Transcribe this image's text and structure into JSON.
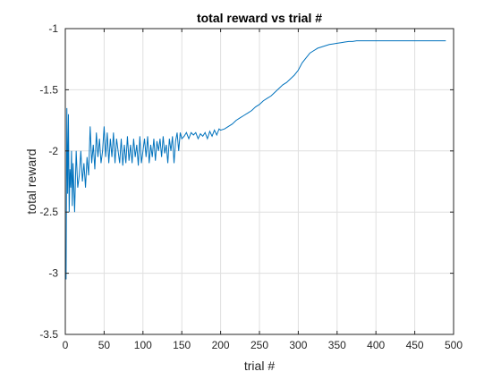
{
  "chart_data": {
    "type": "line",
    "title": "total reward vs trial #",
    "xlabel": "trial #",
    "ylabel": "total reward",
    "xlim": [
      0,
      500
    ],
    "ylim": [
      -3.5,
      -1
    ],
    "xticks": [
      0,
      50,
      100,
      150,
      200,
      250,
      300,
      350,
      400,
      450,
      500
    ],
    "yticks": [
      -3.5,
      -3,
      -2.5,
      -2,
      -1.5,
      -1
    ],
    "xtick_labels": [
      "0",
      "50",
      "100",
      "150",
      "200",
      "250",
      "300",
      "350",
      "400",
      "450",
      "500"
    ],
    "ytick_labels": [
      "-3.5",
      "-3",
      "-2.5",
      "-2",
      "-1.5",
      "-1"
    ],
    "grid": true,
    "series": [
      {
        "color": "#0072BD",
        "x": [
          1,
          2,
          3,
          4,
          5,
          6,
          7,
          8,
          9,
          10,
          12,
          14,
          16,
          18,
          20,
          22,
          24,
          26,
          28,
          30,
          32,
          34,
          36,
          38,
          40,
          42,
          44,
          46,
          48,
          50,
          52,
          54,
          56,
          58,
          60,
          62,
          64,
          66,
          68,
          70,
          72,
          74,
          76,
          78,
          80,
          82,
          84,
          86,
          88,
          90,
          92,
          94,
          96,
          98,
          100,
          102,
          104,
          106,
          108,
          110,
          112,
          114,
          116,
          118,
          120,
          122,
          124,
          126,
          128,
          130,
          132,
          134,
          136,
          138,
          140,
          142,
          144,
          146,
          148,
          150,
          153,
          156,
          159,
          162,
          165,
          168,
          171,
          174,
          177,
          180,
          183,
          186,
          189,
          192,
          195,
          198,
          200,
          205,
          210,
          215,
          220,
          225,
          230,
          235,
          240,
          245,
          250,
          255,
          260,
          265,
          270,
          275,
          280,
          285,
          290,
          295,
          300,
          305,
          310,
          315,
          320,
          325,
          330,
          335,
          340,
          345,
          350,
          355,
          360,
          365,
          370,
          375,
          380,
          385,
          390,
          400,
          410,
          420,
          430,
          440,
          450,
          460,
          470,
          480,
          490
        ],
        "y": [
          -3.05,
          -1.65,
          -2.35,
          -1.7,
          -2.5,
          -2.15,
          -2.3,
          -2.0,
          -2.45,
          -2.1,
          -2.5,
          -2.0,
          -2.3,
          -2.2,
          -2.0,
          -2.25,
          -2.1,
          -2.3,
          -2.05,
          -2.2,
          -1.8,
          -2.1,
          -1.95,
          -2.15,
          -1.85,
          -2.05,
          -1.9,
          -2.1,
          -2.0,
          -1.8,
          -2.05,
          -1.85,
          -2.1,
          -1.9,
          -2.05,
          -1.85,
          -2.1,
          -1.9,
          -2.0,
          -2.1,
          -1.9,
          -2.12,
          -1.95,
          -2.1,
          -1.88,
          -2.08,
          -1.95,
          -2.1,
          -1.9,
          -2.05,
          -1.95,
          -2.12,
          -1.88,
          -2.1,
          -2.0,
          -1.9,
          -2.05,
          -1.88,
          -2.1,
          -1.95,
          -2.05,
          -1.9,
          -2.08,
          -1.92,
          -2.0,
          -1.9,
          -2.05,
          -1.88,
          -2.02,
          -1.95,
          -2.1,
          -1.9,
          -2.0,
          -1.88,
          -2.1,
          -1.92,
          -1.85,
          -2.0,
          -1.85,
          -1.9,
          -1.88,
          -1.85,
          -1.9,
          -1.85,
          -1.87,
          -1.85,
          -1.9,
          -1.86,
          -1.88,
          -1.85,
          -1.9,
          -1.84,
          -1.88,
          -1.83,
          -1.87,
          -1.82,
          -1.83,
          -1.82,
          -1.8,
          -1.78,
          -1.75,
          -1.73,
          -1.71,
          -1.69,
          -1.67,
          -1.64,
          -1.62,
          -1.59,
          -1.57,
          -1.55,
          -1.52,
          -1.49,
          -1.46,
          -1.44,
          -1.41,
          -1.38,
          -1.34,
          -1.28,
          -1.24,
          -1.2,
          -1.18,
          -1.16,
          -1.15,
          -1.14,
          -1.13,
          -1.125,
          -1.12,
          -1.115,
          -1.11,
          -1.105,
          -1.105,
          -1.1,
          -1.1,
          -1.1,
          -1.1,
          -1.1,
          -1.1,
          -1.1,
          -1.1,
          -1.1,
          -1.1,
          -1.1,
          -1.1,
          -1.1,
          -1.1
        ]
      }
    ]
  }
}
